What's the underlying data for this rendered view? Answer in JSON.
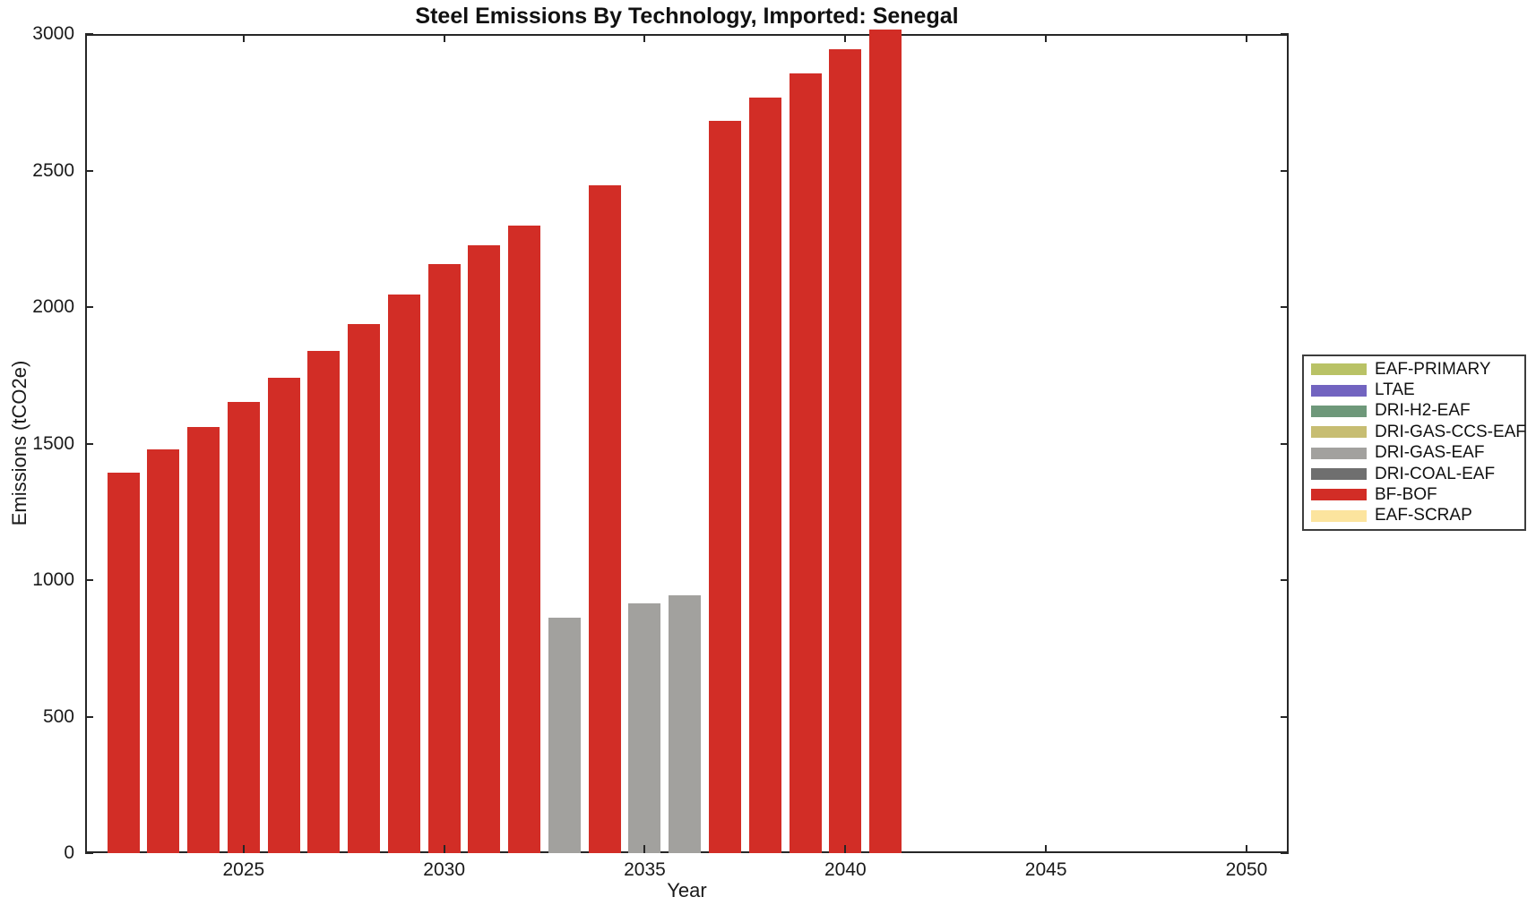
{
  "figure": {
    "background": "#ffffff",
    "axis_color": "#262626",
    "text_color": "#1a1a1a"
  },
  "chart_data": {
    "type": "bar",
    "title": "Steel Emissions By Technology, Imported: Senegal",
    "xlabel": "Year",
    "ylabel": "Emissions (tCO2e)",
    "xlim": [
      2021,
      2051
    ],
    "ylim": [
      0,
      3000
    ],
    "x_ticks": [
      2025,
      2030,
      2035,
      2040,
      2045,
      2050
    ],
    "y_ticks": [
      0,
      500,
      1000,
      1500,
      2000,
      2500,
      3000
    ],
    "grid": false,
    "bar_width_fraction": 0.8,
    "legend_position": "outside-right",
    "legend": [
      {
        "label": "EAF-PRIMARY",
        "color": "#b9c266"
      },
      {
        "label": "LTAE",
        "color": "#7264c0"
      },
      {
        "label": "DRI-H2-EAF",
        "color": "#6e987a"
      },
      {
        "label": "DRI-GAS-CCS-EAF",
        "color": "#c7bd72"
      },
      {
        "label": "DRI-GAS-EAF",
        "color": "#a2a19e"
      },
      {
        "label": "DRI-COAL-EAF",
        "color": "#6f6f6f"
      },
      {
        "label": "BF-BOF",
        "color": "#d22d26"
      },
      {
        "label": "EAF-SCRAP",
        "color": "#fce49e"
      }
    ],
    "bars": [
      {
        "year": 2022,
        "value": 1395,
        "technology": "BF-BOF"
      },
      {
        "year": 2023,
        "value": 1478,
        "technology": "BF-BOF"
      },
      {
        "year": 2024,
        "value": 1561,
        "technology": "BF-BOF"
      },
      {
        "year": 2025,
        "value": 1651,
        "technology": "BF-BOF"
      },
      {
        "year": 2026,
        "value": 1742,
        "technology": "BF-BOF"
      },
      {
        "year": 2027,
        "value": 1839,
        "technology": "BF-BOF"
      },
      {
        "year": 2028,
        "value": 1939,
        "technology": "BF-BOF"
      },
      {
        "year": 2029,
        "value": 2045,
        "technology": "BF-BOF"
      },
      {
        "year": 2030,
        "value": 2157,
        "technology": "BF-BOF"
      },
      {
        "year": 2031,
        "value": 2226,
        "technology": "BF-BOF"
      },
      {
        "year": 2032,
        "value": 2297,
        "technology": "BF-BOF"
      },
      {
        "year": 2033,
        "value": 861,
        "technology": "DRI-GAS-EAF"
      },
      {
        "year": 2034,
        "value": 2446,
        "technology": "BF-BOF"
      },
      {
        "year": 2035,
        "value": 914,
        "technology": "DRI-GAS-EAF"
      },
      {
        "year": 2036,
        "value": 944,
        "technology": "DRI-GAS-EAF"
      },
      {
        "year": 2037,
        "value": 2683,
        "technology": "BF-BOF"
      },
      {
        "year": 2038,
        "value": 2769,
        "technology": "BF-BOF"
      },
      {
        "year": 2039,
        "value": 2855,
        "technology": "BF-BOF"
      },
      {
        "year": 2040,
        "value": 2945,
        "technology": "BF-BOF"
      },
      {
        "year": 2041,
        "value": 3015,
        "technology": "BF-BOF"
      }
    ]
  }
}
